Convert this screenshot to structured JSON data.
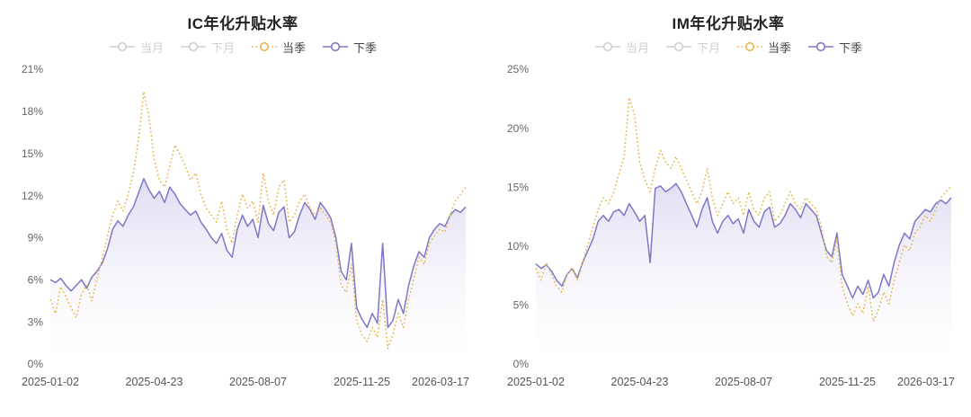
{
  "colors": {
    "quarter_line": "#e7b64b",
    "next_quarter_line": "#7f76c8",
    "area_fill_top": "#aaa2d9",
    "inactive_legend": "#cfcfcf",
    "active_label": "#454545",
    "title_text": "#222222"
  },
  "chart_data": [
    {
      "type": "line",
      "title": "IC年化升贴水率",
      "xlabel": "",
      "ylabel": "",
      "ylim": [
        0,
        21
      ],
      "y_ticks": [
        0,
        3,
        6,
        9,
        12,
        15,
        18,
        21
      ],
      "y_tick_labels": [
        "0%",
        "3%",
        "6%",
        "9%",
        "12%",
        "15%",
        "18%",
        "21%"
      ],
      "x_tick_labels": [
        "2025-01-02",
        "2025-04-23",
        "2025-08-07",
        "2025-11-25",
        "2026-03-17"
      ],
      "grid": false,
      "legend_position": "top",
      "legend": [
        {
          "label": "当月",
          "active": false,
          "color": "#cfcfcf",
          "line_style": "solid"
        },
        {
          "label": "下月",
          "active": false,
          "color": "#cfcfcf",
          "line_style": "solid"
        },
        {
          "label": "当季",
          "active": true,
          "color": "#e7b64b",
          "line_style": "dotted"
        },
        {
          "label": "下季",
          "active": true,
          "color": "#7f76c8",
          "line_style": "solid"
        }
      ],
      "series": [
        {
          "name": "当季",
          "render": "line",
          "line_style": "dotted",
          "color": "#e7b64b",
          "values": [
            4.6,
            3.6,
            5.5,
            4.8,
            4.0,
            3.3,
            5.0,
            5.6,
            4.5,
            6.1,
            7.6,
            9.1,
            10.6,
            11.6,
            10.9,
            12.1,
            13.6,
            16.1,
            19.4,
            17.6,
            14.6,
            13.1,
            12.6,
            14.1,
            15.6,
            14.9,
            14.1,
            13.1,
            13.6,
            12.1,
            11.1,
            10.6,
            10.1,
            11.6,
            9.6,
            8.6,
            10.6,
            12.1,
            11.1,
            11.6,
            10.1,
            13.6,
            11.6,
            10.6,
            12.6,
            13.1,
            10.1,
            10.6,
            11.6,
            12.1,
            11.1,
            10.6,
            11.1,
            10.6,
            10.1,
            8.6,
            5.6,
            5.1,
            7.1,
            3.1,
            2.1,
            1.6,
            2.6,
            1.9,
            4.6,
            1.1,
            2.1,
            3.6,
            2.6,
            4.6,
            6.1,
            7.6,
            7.1,
            8.6,
            9.1,
            9.6,
            9.4,
            10.6,
            11.6,
            12.1,
            12.6
          ]
        },
        {
          "name": "下季",
          "render": "area",
          "line_style": "solid",
          "color": "#7f76c8",
          "fill_top": "#aaa2d9",
          "values": [
            6.0,
            5.8,
            6.1,
            5.6,
            5.2,
            5.6,
            6.0,
            5.4,
            6.2,
            6.6,
            7.2,
            8.2,
            9.6,
            10.2,
            9.8,
            10.6,
            11.2,
            12.2,
            13.2,
            12.4,
            11.8,
            12.3,
            11.5,
            12.6,
            12.1,
            11.4,
            11.0,
            10.6,
            10.9,
            10.1,
            9.6,
            9.0,
            8.6,
            9.3,
            8.1,
            7.6,
            9.6,
            10.6,
            9.8,
            10.3,
            9.0,
            11.3,
            10.0,
            9.5,
            10.8,
            11.2,
            9.0,
            9.4,
            10.6,
            11.5,
            11.0,
            10.3,
            11.5,
            11.0,
            10.4,
            9.0,
            6.6,
            6.0,
            8.6,
            4.0,
            3.2,
            2.6,
            3.6,
            2.9,
            8.6,
            2.6,
            3.1,
            4.6,
            3.6,
            5.6,
            7.0,
            8.0,
            7.6,
            9.0,
            9.6,
            10.0,
            9.8,
            10.6,
            11.0,
            10.8,
            11.2
          ]
        }
      ]
    },
    {
      "type": "line",
      "title": "IM年化升贴水率",
      "xlabel": "",
      "ylabel": "",
      "ylim": [
        0,
        25
      ],
      "y_ticks": [
        0,
        5,
        10,
        15,
        20,
        25
      ],
      "y_tick_labels": [
        "0%",
        "5%",
        "10%",
        "15%",
        "20%",
        "25%"
      ],
      "x_tick_labels": [
        "2025-01-02",
        "2025-04-23",
        "2025-08-07",
        "2025-11-25",
        "2026-03-17"
      ],
      "grid": false,
      "legend_position": "top",
      "legend": [
        {
          "label": "当月",
          "active": false,
          "color": "#cfcfcf",
          "line_style": "solid"
        },
        {
          "label": "下月",
          "active": false,
          "color": "#cfcfcf",
          "line_style": "solid"
        },
        {
          "label": "当季",
          "active": true,
          "color": "#e7b64b",
          "line_style": "dotted"
        },
        {
          "label": "下季",
          "active": true,
          "color": "#7f76c8",
          "line_style": "solid"
        }
      ],
      "series": [
        {
          "name": "当季",
          "render": "line",
          "line_style": "dotted",
          "color": "#e7b64b",
          "values": [
            8.1,
            7.1,
            8.6,
            7.6,
            6.6,
            6.1,
            7.6,
            8.1,
            7.1,
            8.6,
            10.1,
            11.6,
            13.1,
            14.1,
            13.6,
            14.6,
            16.1,
            17.6,
            22.6,
            21.1,
            17.1,
            15.6,
            14.6,
            16.6,
            18.1,
            17.1,
            16.6,
            17.6,
            16.6,
            15.6,
            14.6,
            13.6,
            14.6,
            16.6,
            14.1,
            12.6,
            13.6,
            14.6,
            13.6,
            14.1,
            12.6,
            14.6,
            13.1,
            12.6,
            14.1,
            14.6,
            12.1,
            12.6,
            13.6,
            14.6,
            13.6,
            13.1,
            14.1,
            13.6,
            13.1,
            11.6,
            9.1,
            8.6,
            10.6,
            6.6,
            5.1,
            4.1,
            5.1,
            4.3,
            6.6,
            3.6,
            4.6,
            6.1,
            5.1,
            7.1,
            8.6,
            10.1,
            9.6,
            11.1,
            11.6,
            12.6,
            12.1,
            13.1,
            14.1,
            14.6,
            15.1
          ]
        },
        {
          "name": "下季",
          "render": "area",
          "line_style": "solid",
          "color": "#7f76c8",
          "fill_top": "#aaa2d9",
          "values": [
            8.5,
            8.1,
            8.4,
            7.9,
            7.1,
            6.6,
            7.6,
            8.1,
            7.3,
            8.6,
            9.6,
            10.6,
            12.1,
            12.6,
            12.1,
            12.9,
            13.1,
            12.6,
            13.6,
            12.9,
            12.1,
            12.6,
            8.6,
            14.9,
            15.1,
            14.6,
            14.9,
            15.3,
            14.6,
            13.6,
            12.6,
            11.6,
            13.1,
            14.1,
            12.1,
            11.1,
            12.1,
            12.6,
            11.9,
            12.3,
            11.1,
            13.1,
            12.1,
            11.6,
            12.9,
            13.3,
            11.6,
            11.9,
            12.6,
            13.6,
            13.1,
            12.4,
            13.6,
            13.1,
            12.6,
            11.1,
            9.6,
            9.1,
            11.1,
            7.6,
            6.6,
            5.6,
            6.6,
            5.9,
            7.1,
            5.6,
            6.1,
            7.6,
            6.6,
            8.6,
            10.1,
            11.1,
            10.6,
            12.1,
            12.6,
            13.1,
            12.9,
            13.6,
            13.9,
            13.6,
            14.1
          ]
        }
      ]
    }
  ]
}
